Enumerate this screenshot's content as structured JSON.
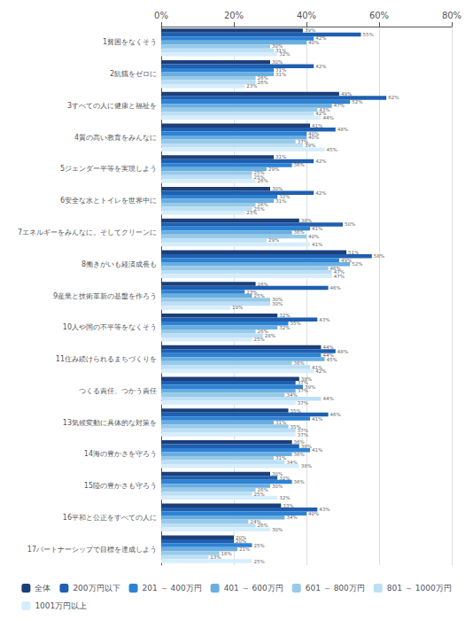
{
  "chart_data": {
    "type": "bar",
    "orientation": "horizontal",
    "categories": [
      "1貧困をなくそう",
      "2飢餓をゼロに",
      "3すべての人に健康と福祉を",
      "4質の高い教育をみんなに",
      "5ジェンダー平等を実現しよう",
      "6安全な水とトイレを世界中に",
      "7エネルギーをみんなに。そしてクリーンに",
      "8働きがいも経済成長も",
      "9産業と技術革新の基盤を作ろう",
      "10人や国の不平等をなくそう",
      "11住み続けられるまちづくりを",
      "つくる責任、つかう責任",
      "13気候変動に具体的な対策を",
      "14海の豊かさを守ろう",
      "15陸の豊かさも守ろう",
      "16平和と公正をすべての人に",
      "17パートナーシップで目標を達成しよう"
    ],
    "series": [
      {
        "name": "全体",
        "color": "#1c3f7a",
        "values": [
          39,
          30,
          49,
          41,
          31,
          30,
          38,
          51,
          26,
          32,
          44,
          38,
          35,
          36,
          30,
          33,
          20
        ],
        "value_labels": [
          "39%",
          "30%",
          "49%",
          "41%",
          "31%",
          "30%",
          "38%",
          "51%",
          "26%",
          "32%",
          "44%",
          "38%",
          "35%",
          "36%",
          "30%",
          "33%",
          "20%"
        ]
      },
      {
        "name": "200万円以下",
        "color": "#1f5faf",
        "values": [
          55,
          42,
          62,
          48,
          42,
          42,
          50,
          58,
          46,
          43,
          48,
          37,
          46,
          38,
          32,
          43,
          20
        ],
        "value_labels": [
          "55%",
          "42%",
          "62%",
          "48%",
          "42%",
          "42%",
          "50%",
          "58%",
          "46%",
          "43%",
          "48%",
          "37%",
          "46%",
          "38%",
          "32%",
          "43%",
          "20%"
        ]
      },
      {
        "name": "201 ～ 400万円",
        "color": "#2e82d4",
        "values": [
          42,
          31,
          52,
          40,
          36,
          32,
          41,
          49,
          23,
          35,
          44,
          39,
          41,
          41,
          36,
          40,
          25
        ],
        "value_labels": [
          "42%",
          "31%",
          "52%",
          "40%",
          "36%",
          "32%",
          "41%",
          "49%",
          "23%",
          "35%",
          "44%",
          "39%",
          "41%",
          "41%",
          "36%",
          "40%",
          "25%"
        ]
      },
      {
        "name": "401 ～ 600万円",
        "color": "#6aaee0",
        "values": [
          40,
          31,
          47,
          40,
          29,
          31,
          36,
          52,
          25,
          32,
          45,
          37,
          31,
          36,
          30,
          34,
          21
        ],
        "value_labels": [
          "40%",
          "31%",
          "47%",
          "40%",
          "29%",
          "31%",
          "36%",
          "52%",
          "25%",
          "32%",
          "45%",
          "37%",
          "31%",
          "36%",
          "30%",
          "34%",
          "21%"
        ]
      },
      {
        "name": "601 ～ 800万円",
        "color": "#97cae8",
        "values": [
          30,
          26,
          43,
          37,
          25,
          26,
          40,
          46,
          30,
          26,
          36,
          34,
          35,
          31,
          26,
          24,
          16
        ],
        "value_labels": [
          "30%",
          "26%",
          "43%",
          "37%",
          "25%",
          "26%",
          "40%",
          "46%",
          "30%",
          "26%",
          "36%",
          "34%",
          "35%",
          "31%",
          "26%",
          "24%",
          "16%"
        ]
      },
      {
        "name": "801 ～ 1000万円",
        "color": "#bddff5",
        "values": [
          31,
          26,
          42,
          39,
          25,
          25,
          29,
          47,
          30,
          28,
          41,
          44,
          37,
          34,
          25,
          26,
          13
        ],
        "value_labels": [
          "31%",
          "26%",
          "42%",
          "39%",
          "25%",
          "25%",
          "29%",
          "47%",
          "30%",
          "28%",
          "41%",
          "44%",
          "37%",
          "34%",
          "25%",
          "26%",
          "13%"
        ]
      },
      {
        "name": "1001万円以上",
        "color": "#d6eefb",
        "values": [
          32,
          23,
          44,
          45,
          26,
          23,
          41,
          47,
          19,
          25,
          42,
          37,
          37,
          38,
          32,
          30,
          25
        ],
        "value_labels": [
          "32%",
          "23%",
          "44%",
          "45%",
          "26%",
          "23%",
          "41%",
          "47%",
          "19%",
          "25%",
          "42%",
          "37%",
          "37%",
          "38%",
          "32%",
          "30%",
          "25%"
        ]
      }
    ],
    "xlim": [
      0,
      80
    ],
    "xticks": [
      {
        "value": 0,
        "label": "0%"
      },
      {
        "value": 20,
        "label": "20%"
      },
      {
        "value": 40,
        "label": "40%"
      },
      {
        "value": 60,
        "label": "60%"
      },
      {
        "value": 80,
        "label": "80%"
      }
    ],
    "grid": true,
    "legend": "bottom",
    "data_labels": true
  }
}
